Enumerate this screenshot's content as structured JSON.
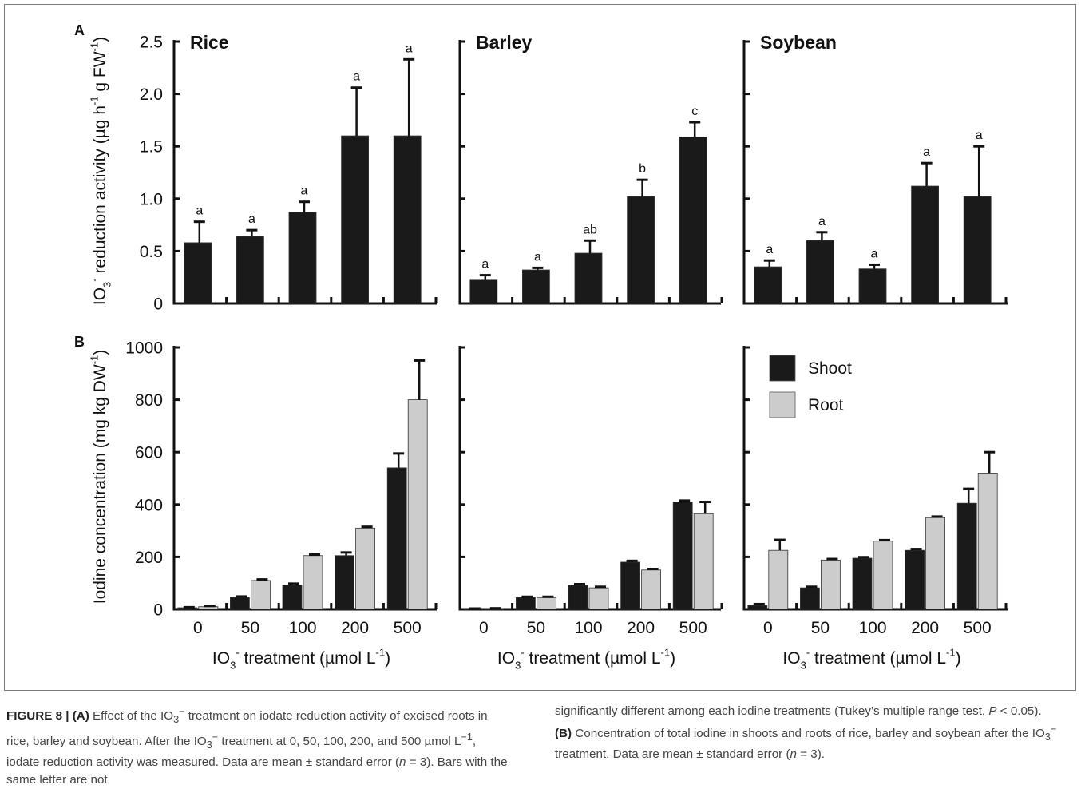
{
  "figure": {
    "panel_labels": [
      "A",
      "B"
    ],
    "caption_left_html": "<b>FIGURE 8 | (A)</b> Effect of the IO<sub>3</sub><sup>−</sup> treatment on iodate reduction activity of excised roots in rice, barley and soybean. After the IO<sub>3</sub><sup>−</sup> treatment at 0, 50, 100, 200, and 500 µmol L<sup>−1</sup>, iodate reduction activity was measured. Data are mean ± standard error (<i>n</i> = 3). Bars with the same letter are not",
    "caption_right_html": "significantly different among each iodine treatments (Tukey’s multiple range test, <i>P</i> &lt; 0.05). <b>(B)</b> Concentration of total iodine in shoots and roots of rice, barley and soybean after the IO<sub>3</sub><sup>−</sup> treatment. Data are mean ± standard error (<i>n</i> = 3)."
  },
  "chart_data": [
    {
      "panel": "A",
      "id": "A-rice",
      "type": "bar",
      "title": "Rice",
      "ylabel_parts": [
        "IO",
        "3",
        "-",
        " reduction activity (µg h",
        "-1",
        " g FW",
        "-1",
        ")"
      ],
      "ylim": [
        0,
        2.5
      ],
      "yticks": [
        0,
        0.5,
        1.0,
        1.5,
        2.0,
        2.5
      ],
      "ytick_labels": [
        "0",
        "0.5",
        "1.0",
        "1.5",
        "2.0",
        "2.5"
      ],
      "categories": [
        "0",
        "50",
        "100",
        "200",
        "500"
      ],
      "series": [
        {
          "values": [
            0.58,
            0.64,
            0.87,
            1.6,
            1.6
          ],
          "errors": [
            0.2,
            0.06,
            0.1,
            0.46,
            0.73
          ],
          "color": "#1a1a1a"
        }
      ],
      "letters": [
        "a",
        "a",
        "a",
        "a",
        "a"
      ]
    },
    {
      "panel": "A",
      "id": "A-barley",
      "type": "bar",
      "title": "Barley",
      "ylim": [
        0,
        2.5
      ],
      "yticks": [
        0,
        0.5,
        1.0,
        1.5,
        2.0,
        2.5
      ],
      "categories": [
        "0",
        "50",
        "100",
        "200",
        "500"
      ],
      "series": [
        {
          "values": [
            0.23,
            0.32,
            0.48,
            1.02,
            1.59
          ],
          "errors": [
            0.04,
            0.02,
            0.12,
            0.16,
            0.14
          ],
          "color": "#1a1a1a"
        }
      ],
      "letters": [
        "a",
        "a",
        "ab",
        "b",
        "c"
      ]
    },
    {
      "panel": "A",
      "id": "A-soybean",
      "type": "bar",
      "title": "Soybean",
      "ylim": [
        0,
        2.5
      ],
      "yticks": [
        0,
        0.5,
        1.0,
        1.5,
        2.0,
        2.5
      ],
      "categories": [
        "0",
        "50",
        "100",
        "200",
        "500"
      ],
      "series": [
        {
          "values": [
            0.35,
            0.6,
            0.33,
            1.12,
            1.02
          ],
          "errors": [
            0.06,
            0.08,
            0.04,
            0.22,
            0.48
          ],
          "color": "#1a1a1a"
        }
      ],
      "letters": [
        "a",
        "a",
        "a",
        "a",
        "a"
      ]
    },
    {
      "panel": "B",
      "id": "B-rice",
      "type": "bar",
      "ylabel_parts": [
        "Iodine concentration (mg kg DW",
        "-1",
        ")"
      ],
      "xlabel_parts": [
        "IO",
        "3",
        "-",
        " treatment (µmol L",
        "-1",
        ")"
      ],
      "ylim": [
        0,
        1000
      ],
      "yticks": [
        0,
        200,
        400,
        600,
        800,
        1000
      ],
      "ytick_labels": [
        "0",
        "200",
        "400",
        "600",
        "800",
        "1000"
      ],
      "categories": [
        "0",
        "50",
        "100",
        "200",
        "500"
      ],
      "series": [
        {
          "name": "Shoot",
          "values": [
            6,
            45,
            93,
            205,
            540
          ],
          "errors": [
            2,
            4,
            5,
            12,
            55
          ],
          "color": "#1a1a1a"
        },
        {
          "name": "Root",
          "values": [
            10,
            110,
            205,
            310,
            800
          ],
          "errors": [
            3,
            4,
            4,
            5,
            150
          ],
          "color": "#cccccc"
        }
      ]
    },
    {
      "panel": "B",
      "id": "B-barley",
      "type": "bar",
      "xlabel_parts": [
        "IO",
        "3",
        "-",
        " treatment (µmol L",
        "-1",
        ")"
      ],
      "ylim": [
        0,
        1000
      ],
      "yticks": [
        0,
        200,
        400,
        600,
        800,
        1000
      ],
      "categories": [
        "0",
        "50",
        "100",
        "200",
        "500"
      ],
      "series": [
        {
          "name": "Shoot",
          "values": [
            2,
            45,
            92,
            180,
            410
          ],
          "errors": [
            1,
            3,
            4,
            5,
            5
          ],
          "color": "#1a1a1a"
        },
        {
          "name": "Root",
          "values": [
            3,
            45,
            82,
            150,
            365
          ],
          "errors": [
            1,
            3,
            4,
            4,
            45
          ],
          "color": "#cccccc"
        }
      ]
    },
    {
      "panel": "B",
      "id": "B-soybean",
      "type": "bar",
      "xlabel_parts": [
        "IO",
        "3",
        "-",
        " treatment (µmol L",
        "-1",
        ")"
      ],
      "ylim": [
        0,
        1000
      ],
      "yticks": [
        0,
        200,
        400,
        600,
        800,
        1000
      ],
      "categories": [
        "0",
        "50",
        "100",
        "200",
        "500"
      ],
      "series": [
        {
          "name": "Shoot",
          "values": [
            15,
            82,
            195,
            225,
            405
          ],
          "errors": [
            5,
            4,
            4,
            5,
            55
          ],
          "color": "#1a1a1a"
        },
        {
          "name": "Root",
          "values": [
            225,
            188,
            260,
            350,
            520
          ],
          "errors": [
            40,
            4,
            4,
            4,
            80
          ],
          "color": "#cccccc"
        }
      ],
      "legend": {
        "entries": [
          "Shoot",
          "Root"
        ],
        "placement": "top-right"
      }
    }
  ]
}
